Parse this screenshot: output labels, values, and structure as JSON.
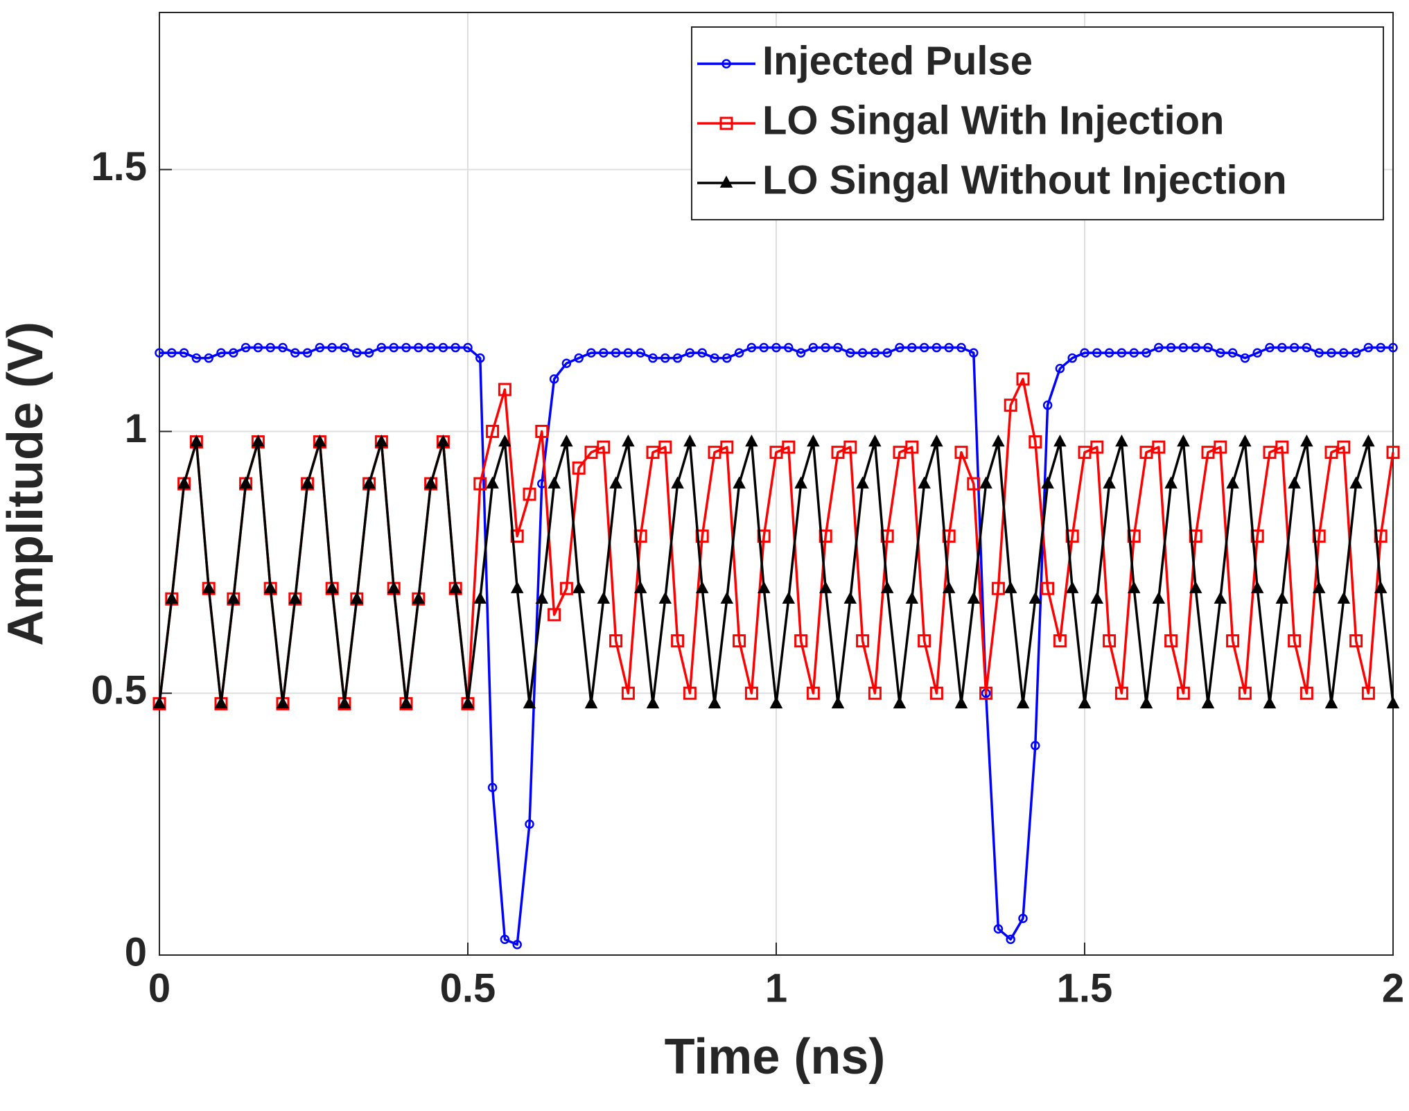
{
  "chart_data": {
    "type": "line",
    "xlabel": "Time (ns)",
    "ylabel": "Amplitude (V)",
    "xlim": [
      0,
      2
    ],
    "ylim": [
      0,
      1.8
    ],
    "xticks": [
      0,
      0.5,
      1,
      1.5,
      2
    ],
    "yticks": [
      0,
      0.5,
      1,
      1.5
    ],
    "grid": true,
    "legend": "northeast",
    "x": [
      0,
      0.02,
      0.04,
      0.06,
      0.08,
      0.1,
      0.12,
      0.14,
      0.16,
      0.18,
      0.2,
      0.22,
      0.24,
      0.26,
      0.28,
      0.3,
      0.32,
      0.34,
      0.36,
      0.38,
      0.4,
      0.42,
      0.44,
      0.46,
      0.48,
      0.5,
      0.52,
      0.54,
      0.56,
      0.58,
      0.6,
      0.62,
      0.64,
      0.66,
      0.68,
      0.7,
      0.72,
      0.74,
      0.76,
      0.78,
      0.8,
      0.82,
      0.84,
      0.86,
      0.88,
      0.9,
      0.92,
      0.94,
      0.96,
      0.98,
      1,
      1.02,
      1.04,
      1.06,
      1.08,
      1.1,
      1.12,
      1.14,
      1.16,
      1.18,
      1.2,
      1.22,
      1.24,
      1.26,
      1.28,
      1.3,
      1.32,
      1.34,
      1.36,
      1.38,
      1.4,
      1.42,
      1.44,
      1.46,
      1.48,
      1.5,
      1.52,
      1.54,
      1.56,
      1.58,
      1.6,
      1.62,
      1.64,
      1.66,
      1.68,
      1.7,
      1.72,
      1.74,
      1.76,
      1.78,
      1.8,
      1.82,
      1.84,
      1.86,
      1.88,
      1.9,
      1.92,
      1.94,
      1.96,
      1.98,
      2
    ],
    "series": [
      {
        "name": "Injected Pulse",
        "color": "#0000ff",
        "marker": "o",
        "values": [
          1.15,
          1.15,
          1.15,
          1.14,
          1.14,
          1.15,
          1.15,
          1.16,
          1.16,
          1.16,
          1.16,
          1.15,
          1.15,
          1.16,
          1.16,
          1.16,
          1.15,
          1.15,
          1.16,
          1.16,
          1.16,
          1.16,
          1.16,
          1.16,
          1.16,
          1.16,
          1.14,
          0.32,
          0.03,
          0.02,
          0.25,
          0.9,
          1.1,
          1.13,
          1.14,
          1.15,
          1.15,
          1.15,
          1.15,
          1.15,
          1.14,
          1.14,
          1.14,
          1.15,
          1.15,
          1.14,
          1.14,
          1.15,
          1.16,
          1.16,
          1.16,
          1.16,
          1.15,
          1.16,
          1.16,
          1.16,
          1.15,
          1.15,
          1.15,
          1.15,
          1.16,
          1.16,
          1.16,
          1.16,
          1.16,
          1.16,
          1.15,
          0.5,
          0.05,
          0.03,
          0.07,
          0.4,
          1.05,
          1.12,
          1.14,
          1.15,
          1.15,
          1.15,
          1.15,
          1.15,
          1.15,
          1.16,
          1.16,
          1.16,
          1.16,
          1.16,
          1.15,
          1.15,
          1.14,
          1.15,
          1.16,
          1.16,
          1.16,
          1.16,
          1.15,
          1.15,
          1.15,
          1.15,
          1.16,
          1.16,
          1.16
        ]
      },
      {
        "name": "LO Singal With Injection",
        "color": "#ff0000",
        "marker": "s",
        "values": [
          0.48,
          0.68,
          0.9,
          0.98,
          0.7,
          0.48,
          0.68,
          0.9,
          0.98,
          0.7,
          0.48,
          0.68,
          0.9,
          0.98,
          0.7,
          0.48,
          0.68,
          0.9,
          0.98,
          0.7,
          0.48,
          0.68,
          0.9,
          0.98,
          0.7,
          0.48,
          0.9,
          1.0,
          1.08,
          0.8,
          0.88,
          1.0,
          0.65,
          0.7,
          0.93,
          0.96,
          0.97,
          0.6,
          0.5,
          0.8,
          0.96,
          0.97,
          0.6,
          0.5,
          0.8,
          0.96,
          0.97,
          0.6,
          0.5,
          0.8,
          0.96,
          0.97,
          0.6,
          0.5,
          0.8,
          0.96,
          0.97,
          0.6,
          0.5,
          0.8,
          0.96,
          0.97,
          0.6,
          0.5,
          0.8,
          0.96,
          0.9,
          0.5,
          0.7,
          1.05,
          1.1,
          0.98,
          0.7,
          0.6,
          0.8,
          0.96,
          0.97,
          0.6,
          0.5,
          0.8,
          0.96,
          0.97,
          0.6,
          0.5,
          0.8,
          0.96,
          0.97,
          0.6,
          0.5,
          0.8,
          0.96,
          0.97,
          0.6,
          0.5,
          0.8,
          0.96,
          0.97,
          0.6,
          0.5,
          0.8,
          0.96
        ]
      },
      {
        "name": "LO Singal Without Injection",
        "color": "#000000",
        "marker": "^",
        "values": [
          0.48,
          0.68,
          0.9,
          0.98,
          0.7,
          0.48,
          0.68,
          0.9,
          0.98,
          0.7,
          0.48,
          0.68,
          0.9,
          0.98,
          0.7,
          0.48,
          0.68,
          0.9,
          0.98,
          0.7,
          0.48,
          0.68,
          0.9,
          0.98,
          0.7,
          0.48,
          0.68,
          0.9,
          0.98,
          0.7,
          0.48,
          0.68,
          0.9,
          0.98,
          0.7,
          0.48,
          0.68,
          0.9,
          0.98,
          0.7,
          0.48,
          0.68,
          0.9,
          0.98,
          0.7,
          0.48,
          0.68,
          0.9,
          0.98,
          0.7,
          0.48,
          0.68,
          0.9,
          0.98,
          0.7,
          0.48,
          0.68,
          0.9,
          0.98,
          0.7,
          0.48,
          0.68,
          0.9,
          0.98,
          0.7,
          0.48,
          0.68,
          0.9,
          0.98,
          0.7,
          0.48,
          0.68,
          0.9,
          0.98,
          0.7,
          0.48,
          0.68,
          0.9,
          0.98,
          0.7,
          0.48,
          0.68,
          0.9,
          0.98,
          0.7,
          0.48,
          0.68,
          0.9,
          0.98,
          0.7,
          0.48,
          0.68,
          0.9,
          0.98,
          0.7,
          0.48,
          0.68,
          0.9,
          0.98,
          0.7,
          0.48
        ]
      }
    ]
  }
}
